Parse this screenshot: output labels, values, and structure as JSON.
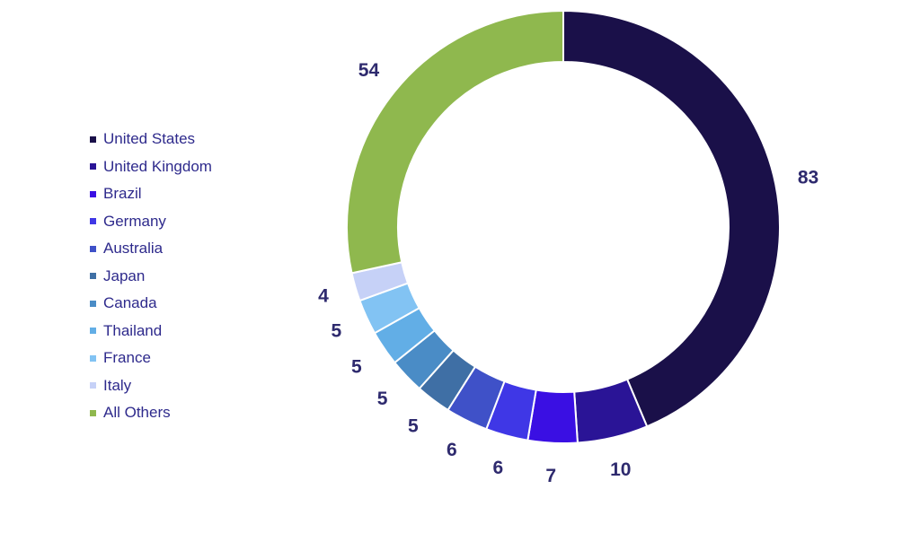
{
  "chart_data": {
    "type": "pie",
    "variant": "donut",
    "categories": [
      "United States",
      "United Kingdom",
      "Brazil",
      "Germany",
      "Australia",
      "Japan",
      "Canada",
      "Thailand",
      "France",
      "Italy",
      "All Others"
    ],
    "values": [
      83,
      10,
      7,
      6,
      6,
      5,
      5,
      5,
      5,
      4,
      54
    ],
    "colors": [
      "#1a1049",
      "#2a1496",
      "#3a0fe3",
      "#3f37e6",
      "#3f51c8",
      "#3f6fa5",
      "#4a8cc6",
      "#62aee6",
      "#82c3f3",
      "#c6d1f7",
      "#8fb84e"
    ],
    "legend": "left",
    "title": "",
    "data_labels": true
  }
}
